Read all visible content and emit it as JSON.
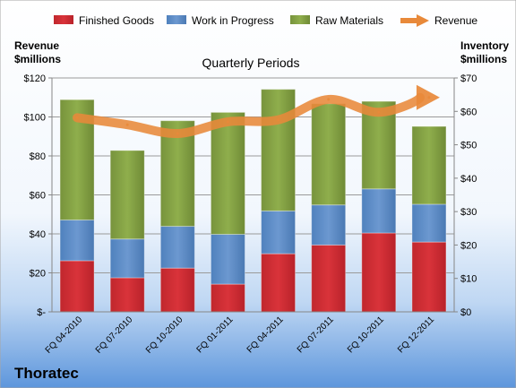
{
  "company": "Thoratec",
  "chart_data": {
    "type": "bar",
    "subtitle": "Quarterly Periods",
    "stacked": true,
    "categories": [
      "FQ 04-2010",
      "FQ 07-2010",
      "FQ 10-2010",
      "FQ 01-2011",
      "FQ 04-2011",
      "FQ 07-2011",
      "FQ 10-2011",
      "FQ 12-2011"
    ],
    "left_axis": {
      "label_line1": "Revenue",
      "label_line2": "$millions",
      "ylim": [
        0,
        120
      ],
      "ticks": [
        0,
        20,
        40,
        60,
        80,
        100,
        120
      ],
      "tick_labels": [
        "$-",
        "$20",
        "$40",
        "$60",
        "$80",
        "$100",
        "$120"
      ]
    },
    "right_axis": {
      "label_line1": "Inventory",
      "label_line2": "$millions",
      "ylim": [
        0,
        70
      ],
      "ticks": [
        0,
        10,
        20,
        30,
        40,
        50,
        60,
        70
      ],
      "tick_labels": [
        "$0",
        "$10",
        "$20",
        "$30",
        "$40",
        "$50",
        "$60",
        "$70"
      ]
    },
    "series": [
      {
        "name": "Finished Goods",
        "axis": "right",
        "color": "#c0272d",
        "values": [
          15.3,
          10.2,
          13.1,
          8.3,
          17.4,
          20.0,
          23.6,
          20.9
        ]
      },
      {
        "name": "Work in Progress",
        "axis": "right",
        "color": "#4f81bd",
        "values": [
          12.2,
          11.6,
          12.5,
          14.9,
          12.8,
          12.0,
          13.2,
          11.3
        ]
      },
      {
        "name": "Raw Materials",
        "axis": "right",
        "color": "#77933c",
        "values": [
          36.0,
          26.5,
          31.6,
          36.5,
          36.4,
          30.3,
          26.2,
          23.3
        ]
      },
      {
        "name": "Revenue",
        "axis": "left",
        "type": "line",
        "color": "#e8893a",
        "values": [
          99.6,
          96.0,
          91.5,
          97.5,
          98.5,
          109.0,
          102.4,
          110.0
        ]
      }
    ],
    "grid": true,
    "legend": "top"
  }
}
